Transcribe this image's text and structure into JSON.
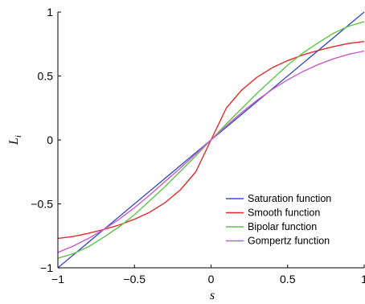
{
  "chart_data": {
    "type": "line",
    "xlabel": "s",
    "ylabel_main": "L",
    "ylabel_sub": "i",
    "xlim": [
      -1,
      1
    ],
    "ylim": [
      -1,
      1
    ],
    "x_ticks": [
      -1,
      -0.5,
      0,
      0.5,
      1
    ],
    "x_tick_labels": [
      "−1",
      "−0.5",
      "0",
      "0.5",
      "1"
    ],
    "y_ticks": [
      -1,
      -0.5,
      0,
      0.5,
      1
    ],
    "y_tick_labels": [
      "−1",
      "−0.5",
      "0",
      "0.5",
      "1"
    ],
    "grid": false,
    "legend_position": "bottom-right",
    "x": [
      -1,
      -0.9,
      -0.8,
      -0.7,
      -0.6,
      -0.5,
      -0.4,
      -0.3,
      -0.2,
      -0.1,
      0,
      0.1,
      0.2,
      0.3,
      0.4,
      0.5,
      0.6,
      0.7,
      0.8,
      0.9,
      1
    ],
    "series": [
      {
        "name": "Saturation function",
        "color": "#3a4fc4",
        "values": [
          -1,
          -0.9,
          -0.8,
          -0.7,
          -0.6,
          -0.5,
          -0.4,
          -0.3,
          -0.2,
          -0.1,
          0,
          0.1,
          0.2,
          0.3,
          0.4,
          0.5,
          0.6,
          0.7,
          0.8,
          0.9,
          1
        ]
      },
      {
        "name": "Smooth function",
        "color": "#e02a2a",
        "values": [
          -0.77,
          -0.755,
          -0.73,
          -0.7,
          -0.665,
          -0.62,
          -0.565,
          -0.49,
          -0.39,
          -0.25,
          0,
          0.25,
          0.39,
          0.49,
          0.565,
          0.62,
          0.665,
          0.7,
          0.73,
          0.755,
          0.77
        ]
      },
      {
        "name": "Bipolar function",
        "color": "#5ec24a",
        "values": [
          -0.925,
          -0.89,
          -0.835,
          -0.76,
          -0.68,
          -0.585,
          -0.475,
          -0.365,
          -0.245,
          -0.125,
          0,
          0.125,
          0.245,
          0.365,
          0.475,
          0.585,
          0.68,
          0.76,
          0.835,
          0.89,
          0.925
        ]
      },
      {
        "name": "Gompertz function",
        "color": "#c85cc8",
        "values": [
          -0.88,
          -0.83,
          -0.77,
          -0.7,
          -0.62,
          -0.53,
          -0.43,
          -0.325,
          -0.22,
          -0.11,
          0,
          0.11,
          0.215,
          0.31,
          0.395,
          0.47,
          0.535,
          0.59,
          0.635,
          0.67,
          0.695
        ]
      }
    ]
  }
}
